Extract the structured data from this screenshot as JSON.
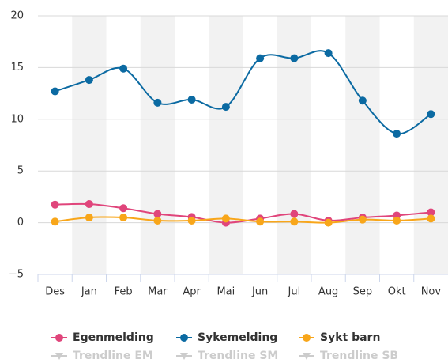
{
  "chart_data": {
    "type": "line",
    "categories": [
      "Des",
      "Jan",
      "Feb",
      "Mar",
      "Apr",
      "Mai",
      "Jun",
      "Jul",
      "Aug",
      "Sep",
      "Okt",
      "Nov"
    ],
    "series": [
      {
        "name": "Egenmelding",
        "color": "#e0457b",
        "values": [
          1.75,
          1.8,
          1.4,
          0.85,
          0.55,
          0.0,
          0.4,
          0.85,
          0.2,
          0.5,
          0.7,
          1.0
        ]
      },
      {
        "name": "Sykemelding",
        "color": "#0b6aa2",
        "values": [
          12.7,
          13.8,
          14.9,
          11.6,
          11.9,
          11.2,
          15.9,
          15.9,
          16.4,
          11.8,
          8.6,
          10.5
        ]
      },
      {
        "name": "Sykt barn",
        "color": "#f8a61a",
        "values": [
          0.1,
          0.5,
          0.5,
          0.2,
          0.2,
          0.4,
          0.1,
          0.1,
          0.0,
          0.3,
          0.2,
          0.4
        ]
      }
    ],
    "hidden_series": [
      {
        "name": "Trendline EM",
        "color": "#cccccc"
      },
      {
        "name": "Trendline SM",
        "color": "#cccccc"
      },
      {
        "name": "Trendline SB",
        "color": "#cccccc"
      }
    ],
    "ylim": [
      -5,
      20
    ],
    "yticks": [
      {
        "value": -5,
        "label": "−5"
      },
      0,
      5,
      10,
      15,
      20
    ],
    "grid": true,
    "band_color": "#f2f2f2",
    "legend": "bottom"
  }
}
